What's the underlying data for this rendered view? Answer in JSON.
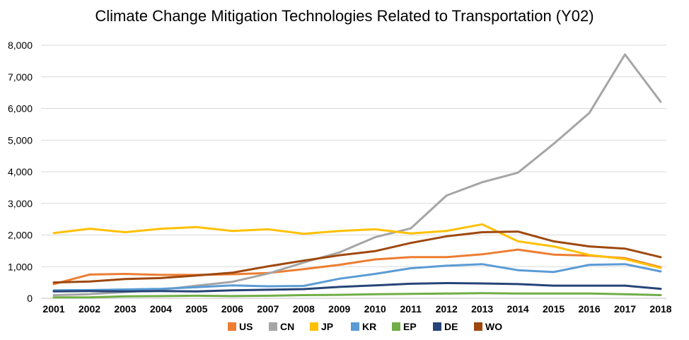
{
  "chart_data": {
    "type": "line",
    "title": "Climate Change Mitigation Technologies Related to Transportation (Y02)",
    "xlabel": "",
    "ylabel": "",
    "ylim": [
      0,
      8000
    ],
    "yticks": [
      0,
      1000,
      2000,
      3000,
      4000,
      5000,
      6000,
      7000,
      8000
    ],
    "ytick_labels": [
      "0",
      "1,000",
      "2,000",
      "3,000",
      "4,000",
      "5,000",
      "6,000",
      "7,000",
      "8,000"
    ],
    "grid": true,
    "legend": "bottom",
    "categories": [
      "2001",
      "2002",
      "2003",
      "2004",
      "2005",
      "2006",
      "2007",
      "2008",
      "2009",
      "2010",
      "2011",
      "2012",
      "2013",
      "2014",
      "2015",
      "2016",
      "2017",
      "2018"
    ],
    "series": [
      {
        "name": "US",
        "color": "#ed7d31",
        "values": [
          450,
          750,
          770,
          740,
          740,
          760,
          800,
          920,
          1060,
          1230,
          1300,
          1300,
          1390,
          1540,
          1380,
          1350,
          1270,
          980
        ]
      },
      {
        "name": "CN",
        "color": "#a5a5a5",
        "values": [
          100,
          130,
          200,
          270,
          400,
          520,
          780,
          1130,
          1450,
          1930,
          2210,
          3250,
          3670,
          3970,
          4880,
          5860,
          7710,
          6210
        ]
      },
      {
        "name": "JP",
        "color": "#ffc000",
        "values": [
          2060,
          2200,
          2090,
          2200,
          2250,
          2130,
          2180,
          2040,
          2130,
          2180,
          2050,
          2130,
          2340,
          1800,
          1640,
          1370,
          1240,
          960
        ]
      },
      {
        "name": "KR",
        "color": "#5b9bd5",
        "values": [
          250,
          260,
          280,
          300,
          350,
          410,
          380,
          390,
          620,
          770,
          950,
          1030,
          1080,
          890,
          830,
          1060,
          1080,
          850
        ]
      },
      {
        "name": "EP",
        "color": "#70ad47",
        "values": [
          30,
          30,
          60,
          70,
          80,
          70,
          80,
          100,
          110,
          130,
          140,
          150,
          160,
          150,
          150,
          150,
          130,
          100
        ]
      },
      {
        "name": "DE",
        "color": "#264478",
        "values": [
          220,
          230,
          220,
          230,
          220,
          250,
          270,
          290,
          360,
          410,
          460,
          480,
          470,
          450,
          400,
          400,
          400,
          300
        ]
      },
      {
        "name": "WO",
        "color": "#9e480e",
        "values": [
          500,
          530,
          610,
          640,
          720,
          810,
          1010,
          1190,
          1360,
          1490,
          1750,
          1960,
          2090,
          2110,
          1800,
          1640,
          1570,
          1300
        ]
      }
    ]
  }
}
